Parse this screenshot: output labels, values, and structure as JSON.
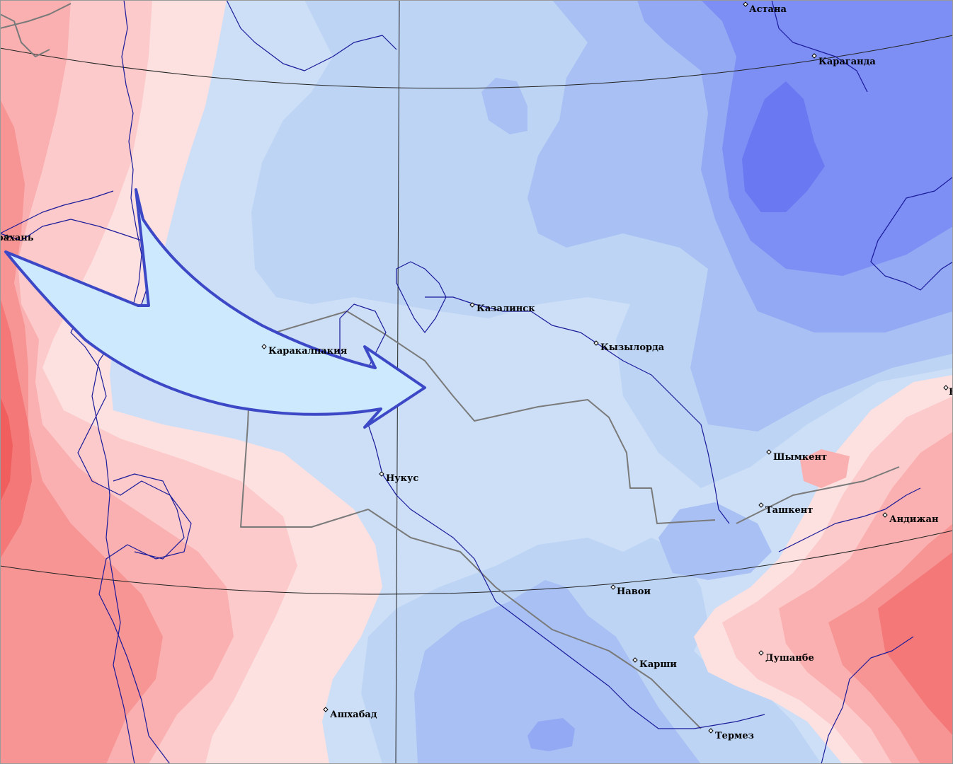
{
  "colors": {
    "warm_1": "#fde0e0",
    "warm_2": "#fccaca",
    "warm_3": "#fab0b0",
    "warm_4": "#f79494",
    "warm_5": "#f47878",
    "warm_6": "#f05e5e",
    "cool_1": "#ccdff7",
    "cool_2": "#bdd4f4",
    "cool_3": "#a8c0f3",
    "cool_4": "#93a9f4",
    "cool_5": "#7d8ff4",
    "cool_6": "#6a78f2",
    "arrow_fill": "#cce9fe",
    "arrow_stroke": "#3c48c6",
    "river": "#1a1a9a",
    "border": "#7a7a7a"
  },
  "cities": [
    {
      "id": "astana",
      "name": "Астана"
    },
    {
      "id": "karaganda",
      "name": "Караганда"
    },
    {
      "id": "astrakhan",
      "name": "Астрахань"
    },
    {
      "id": "kazalinsk",
      "name": "Казалинск"
    },
    {
      "id": "kyzylorda",
      "name": "Кызылорда"
    },
    {
      "id": "karakalpakiya",
      "name": "Каракалпакия"
    },
    {
      "id": "shymkent",
      "name": "Шымкент"
    },
    {
      "id": "nukus",
      "name": "Нукус"
    },
    {
      "id": "tashkent",
      "name": "Ташкент"
    },
    {
      "id": "andijan",
      "name": "Андижан"
    },
    {
      "id": "navoi",
      "name": "Навои"
    },
    {
      "id": "karshi",
      "name": "Карши"
    },
    {
      "id": "dushanbe",
      "name": "Душанбе"
    },
    {
      "id": "ashgabat",
      "name": "Ашхабад"
    },
    {
      "id": "termez",
      "name": "Термез"
    },
    {
      "id": "bishkek",
      "name": "Б"
    }
  ],
  "arrow": {
    "meaning": "cold-air-advection",
    "direction": "west-to-east"
  },
  "icons": {
    "city_marker": "diamond-marker-icon",
    "flow_arrow": "curved-arrow-icon"
  }
}
